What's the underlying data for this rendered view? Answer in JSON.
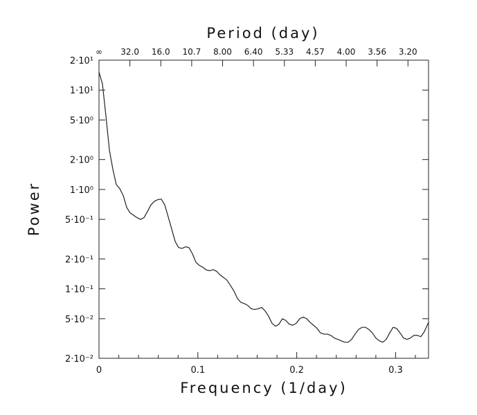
{
  "chart_data": {
    "type": "line",
    "xlabel": "Frequency (1/day)",
    "ylabel": "Power",
    "top_axis_label": "Period (day)",
    "xlim": [
      0,
      0.3333
    ],
    "ylim": [
      0.02,
      20
    ],
    "y_scale": "log",
    "grid": false,
    "x_ticks": [
      {
        "value": 0,
        "label": "0"
      },
      {
        "value": 0.1,
        "label": "0.1"
      },
      {
        "value": 0.2,
        "label": "0.2"
      },
      {
        "value": 0.3,
        "label": "0.3"
      }
    ],
    "y_ticks": [
      {
        "value": 20,
        "label": "2·10¹"
      },
      {
        "value": 10,
        "label": "1·10¹"
      },
      {
        "value": 5,
        "label": "5·10⁰"
      },
      {
        "value": 2,
        "label": "2·10⁰"
      },
      {
        "value": 1,
        "label": "1·10⁰"
      },
      {
        "value": 0.5,
        "label": "5·10⁻¹"
      },
      {
        "value": 0.2,
        "label": "2·10⁻¹"
      },
      {
        "value": 0.1,
        "label": "1·10⁻¹"
      },
      {
        "value": 0.05,
        "label": "5·10⁻²"
      },
      {
        "value": 0.02,
        "label": "2·10⁻²"
      }
    ],
    "top_ticks": [
      {
        "value": 0,
        "label": "∞"
      },
      {
        "value": 0.03125,
        "label": "32.0"
      },
      {
        "value": 0.0625,
        "label": "16.0"
      },
      {
        "value": 0.09375,
        "label": "10.7"
      },
      {
        "value": 0.125,
        "label": "8.00"
      },
      {
        "value": 0.15625,
        "label": "6.40"
      },
      {
        "value": 0.1875,
        "label": "5.33"
      },
      {
        "value": 0.21875,
        "label": "4.57"
      },
      {
        "value": 0.25,
        "label": "4.00"
      },
      {
        "value": 0.28125,
        "label": "3.56"
      },
      {
        "value": 0.3125,
        "label": "3.20"
      }
    ],
    "series": [
      {
        "x": [
          0,
          0.0035,
          0.007,
          0.0105,
          0.014,
          0.0175,
          0.021,
          0.0245,
          0.028,
          0.0315,
          0.035,
          0.0385,
          0.042,
          0.0455,
          0.049,
          0.0525,
          0.056,
          0.0595,
          0.063,
          0.0665,
          0.07,
          0.0735,
          0.077,
          0.0805,
          0.084,
          0.0875,
          0.091,
          0.0945,
          0.098,
          0.1015,
          0.105,
          0.1085,
          0.112,
          0.1155,
          0.119,
          0.1225,
          0.126,
          0.1295,
          0.133,
          0.1365,
          0.14,
          0.1435,
          0.147,
          0.1505,
          0.154,
          0.1575,
          0.161,
          0.1645,
          0.168,
          0.1715,
          0.175,
          0.1785,
          0.182,
          0.1855,
          0.189,
          0.1925,
          0.196,
          0.1995,
          0.203,
          0.2065,
          0.21,
          0.2135,
          0.217,
          0.2205,
          0.224,
          0.2275,
          0.231,
          0.2345,
          0.238,
          0.2415,
          0.245,
          0.2485,
          0.252,
          0.2555,
          0.259,
          0.2625,
          0.266,
          0.2695,
          0.273,
          0.2765,
          0.28,
          0.2835,
          0.287,
          0.2905,
          0.294,
          0.2975,
          0.301,
          0.3045,
          0.308,
          0.3115,
          0.315,
          0.3185,
          0.322,
          0.3255,
          0.329,
          0.3333
        ],
        "y": [
          15.2,
          11.5,
          5.5,
          2.5,
          1.6,
          1.12,
          1.02,
          0.87,
          0.66,
          0.58,
          0.55,
          0.52,
          0.5,
          0.52,
          0.6,
          0.7,
          0.76,
          0.79,
          0.8,
          0.7,
          0.53,
          0.4,
          0.3,
          0.26,
          0.255,
          0.265,
          0.26,
          0.225,
          0.185,
          0.172,
          0.165,
          0.155,
          0.152,
          0.156,
          0.15,
          0.138,
          0.13,
          0.122,
          0.108,
          0.095,
          0.08,
          0.073,
          0.071,
          0.068,
          0.063,
          0.062,
          0.063,
          0.065,
          0.06,
          0.053,
          0.045,
          0.042,
          0.044,
          0.05,
          0.048,
          0.044,
          0.043,
          0.045,
          0.05,
          0.052,
          0.05,
          0.046,
          0.043,
          0.04,
          0.036,
          0.035,
          0.035,
          0.034,
          0.032,
          0.031,
          0.03,
          0.029,
          0.029,
          0.031,
          0.035,
          0.039,
          0.041,
          0.041,
          0.039,
          0.036,
          0.032,
          0.03,
          0.029,
          0.031,
          0.036,
          0.041,
          0.04,
          0.036,
          0.032,
          0.031,
          0.032,
          0.034,
          0.034,
          0.033,
          0.037,
          0.046
        ]
      }
    ]
  }
}
